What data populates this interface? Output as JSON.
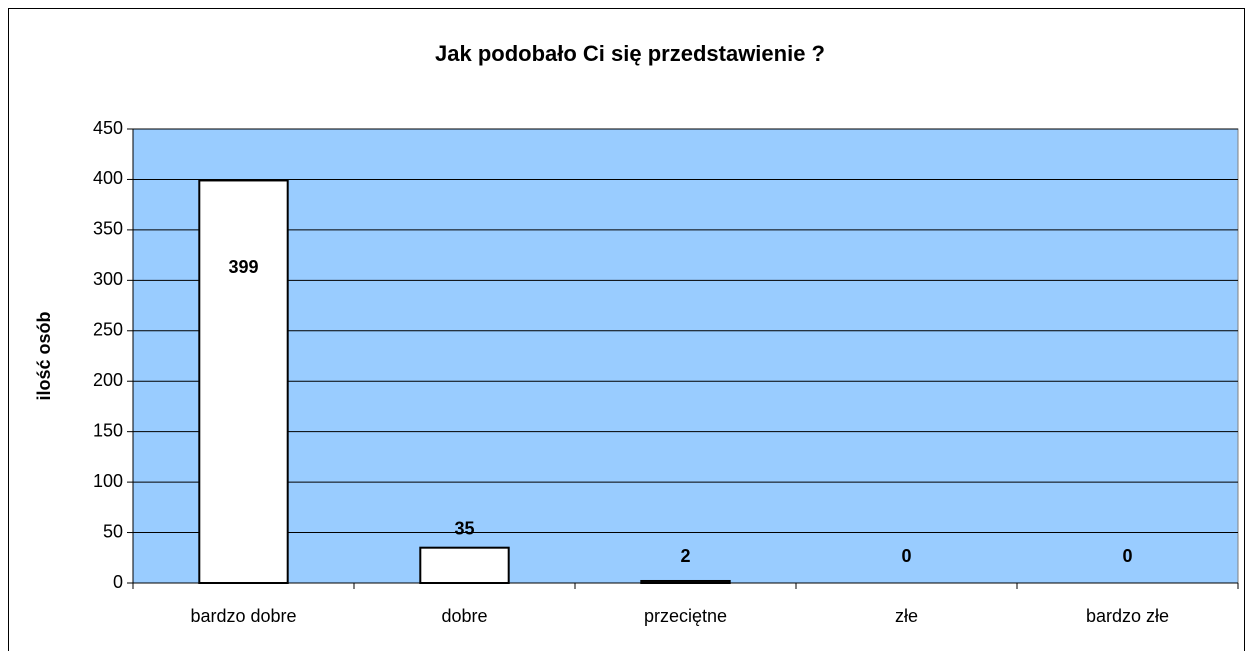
{
  "chart_data": {
    "type": "bar",
    "title": "Jak podobało Ci się przedstawienie ?",
    "y_label": "ilość osób",
    "categories": [
      "bardzo dobre",
      "dobre",
      "przeciętne",
      "złe",
      "bardzo złe"
    ],
    "values": [
      399,
      35,
      2,
      0,
      0
    ],
    "color": "#ffffff",
    "background": "#99ccff",
    "ylim": [
      0,
      450
    ],
    "yticks": [
      0,
      50,
      100,
      150,
      200,
      250,
      300,
      350,
      400,
      450
    ],
    "grid": true
  }
}
